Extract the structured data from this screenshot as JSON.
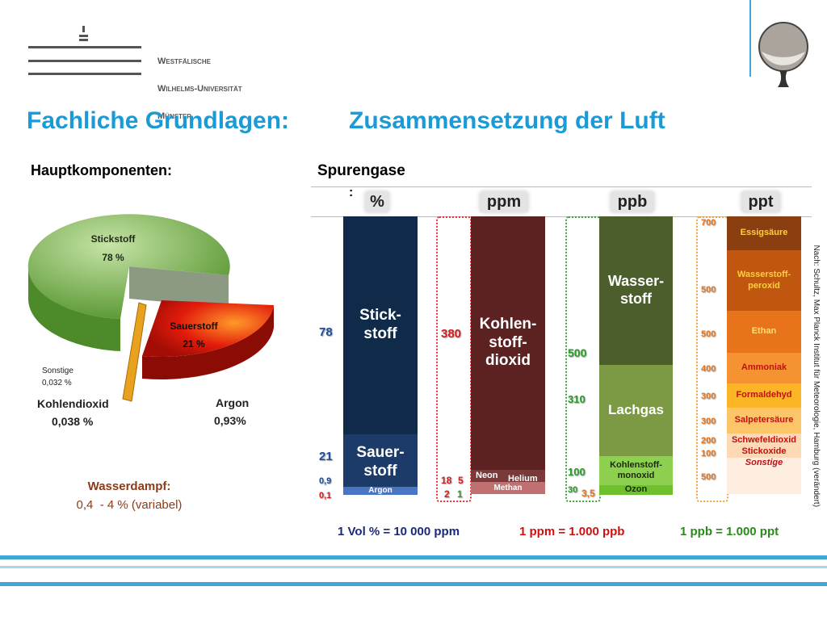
{
  "logo": {
    "lines": [
      "Westfälische",
      "Wilhelms-Universität",
      "Münster"
    ]
  },
  "title": {
    "part1": "Fachliche Grundlagen:",
    "part2": "Zusammensetzung der Luft"
  },
  "main_components": {
    "heading": "Hauptkomponenten:",
    "labels": [
      {
        "name": "Stickstoff",
        "value": "78 %"
      },
      {
        "name": "Sauerstoff",
        "value": "21 %"
      },
      {
        "name": "Sonstige",
        "value": "0,032 %"
      },
      {
        "name": "Kohlendioxid",
        "value": "0,038 %"
      },
      {
        "name": "Argon",
        "value": "0,93%"
      }
    ]
  },
  "water_vapor": {
    "label": "Wasserdampf:",
    "value": "0,4  - 4 % (variabel)"
  },
  "trace_gases": {
    "heading": "Spurengase",
    "colon": ":",
    "columns": [
      {
        "unit": "%",
        "levels": [
          "78",
          "21",
          "0,9",
          "0,1"
        ],
        "gases": [
          "Stick-\nstoff",
          "Sauer-\nstoff",
          "Argon"
        ]
      },
      {
        "unit": "ppm",
        "levels": [
          "380",
          "18",
          "5",
          "2",
          "1"
        ],
        "gases": [
          "Kohlen-\nstoff-\ndioxid",
          "Neon",
          "Helium",
          "Methan"
        ]
      },
      {
        "unit": "ppb",
        "levels": [
          "500",
          "310",
          "100",
          "30",
          "3,5"
        ],
        "gases": [
          "Wasser-\nstoff",
          "Lachgas",
          "Kohlenstoff-\nmonoxid",
          "Ozon"
        ]
      },
      {
        "unit": "ppt",
        "levels": [
          "700",
          "500",
          "500",
          "400",
          "300",
          "300",
          "200",
          "100",
          "500"
        ],
        "gases": [
          "Essigsäure",
          "Wasserstoff-\nperoxid",
          "Ethan",
          "Ammoniak",
          "Formaldehyd",
          "Salpetersäure",
          "Schwefeldioxid",
          "Stickoxide",
          "Sonstige"
        ]
      }
    ]
  },
  "conversions": [
    "1 Vol % = 10 000 ppm",
    "1 ppm = 1.000 ppb",
    "1 ppb = 1.000 ppt"
  ],
  "source": "Nach: Schultz, Max Planck Institut für Meteorologie, Hamburg (verändert)"
}
